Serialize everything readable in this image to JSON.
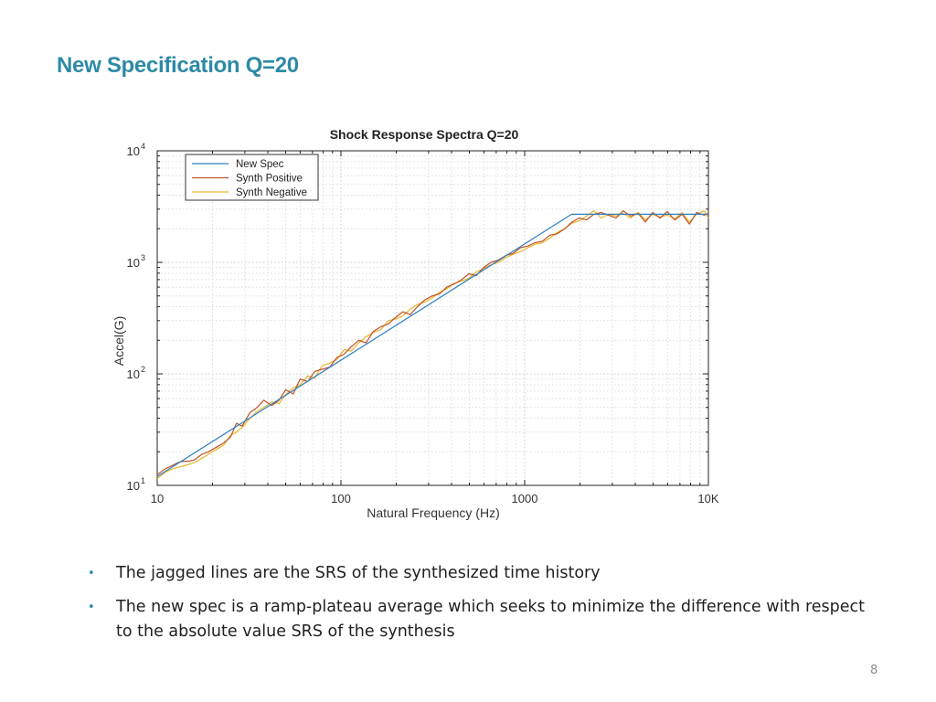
{
  "slide": {
    "title": "New Specification Q=20",
    "bullets": [
      "The jagged lines are the SRS of the synthesized time history",
      "The new spec is a ramp-plateau average which seeks to minimize the difference with respect to the absolute value SRS of the synthesis"
    ],
    "page_number": "8",
    "bullet_symbol": "•"
  },
  "colors": {
    "title": "#2e8aa6",
    "bullet": "#2e8aa6",
    "new_spec": "#2f7fc1",
    "synth_positive": "#c0502a",
    "synth_negative": "#e8b62b"
  },
  "chart_data": {
    "type": "line",
    "title": "Shock Response Spectra  Q=20",
    "xlabel": "Natural Frequency (Hz)",
    "ylabel": "Accel(G)",
    "xscale": "log",
    "yscale": "log",
    "xlim": [
      10,
      10000
    ],
    "ylim": [
      10,
      10000
    ],
    "x_ticks": [
      {
        "value": 10,
        "label": "10"
      },
      {
        "value": 100,
        "label": "100"
      },
      {
        "value": 1000,
        "label": "1000"
      },
      {
        "value": 10000,
        "label": "10K"
      }
    ],
    "y_ticks": [
      {
        "value": 10,
        "base": "10",
        "exp": "1"
      },
      {
        "value": 100,
        "base": "10",
        "exp": "2"
      },
      {
        "value": 1000,
        "base": "10",
        "exp": "3"
      },
      {
        "value": 10000,
        "base": "10",
        "exp": "4"
      }
    ],
    "grid": true,
    "legend_position": "top-left",
    "series": [
      {
        "name": "New Spec",
        "color": "#2f7fc1",
        "x": [
          10,
          1800,
          10000
        ],
        "y": [
          12,
          2700,
          2700
        ]
      },
      {
        "name": "Synth Positive",
        "color": "#c0502a",
        "x": [
          10,
          11,
          12,
          13,
          14,
          15,
          16,
          17.5,
          19,
          21,
          23,
          25,
          27,
          29,
          32,
          35,
          38,
          42,
          46,
          50,
          55,
          60,
          66,
          72,
          79,
          87,
          95,
          104,
          114,
          125,
          137,
          150,
          165,
          181,
          198,
          217,
          238,
          261,
          286,
          314,
          344,
          377,
          414,
          454,
          497,
          545,
          598,
          656,
          719,
          788,
          864,
          948,
          1040,
          1140,
          1250,
          1370,
          1500,
          1650,
          1810,
          1980,
          2170,
          2380,
          2610,
          2860,
          3140,
          3440,
          3770,
          4140,
          4540,
          4970,
          5450,
          5980,
          6560,
          7190,
          7880,
          8640,
          9480,
          10000
        ],
        "y": [
          12.5,
          14,
          15,
          16,
          16.5,
          16.5,
          17,
          19,
          20,
          22,
          24,
          27,
          36,
          34,
          45,
          50,
          58,
          52,
          58,
          72,
          66,
          90,
          85,
          105,
          110,
          115,
          140,
          150,
          175,
          200,
          190,
          240,
          265,
          280,
          320,
          360,
          340,
          400,
          460,
          500,
          520,
          600,
          640,
          700,
          790,
          760,
          900,
          1000,
          1050,
          1150,
          1200,
          1350,
          1400,
          1500,
          1550,
          1750,
          1800,
          2000,
          2300,
          2500,
          2400,
          2700,
          2800,
          2650,
          2500,
          2900,
          2600,
          2750,
          2300,
          2800,
          2500,
          2850,
          2400,
          2700,
          2200,
          2800,
          2650,
          2750
        ]
      },
      {
        "name": "Synth Negative",
        "color": "#e8b62b",
        "x": [
          10,
          11,
          12,
          13,
          14,
          15,
          16,
          17.5,
          19,
          21,
          23,
          25,
          27,
          29,
          32,
          35,
          38,
          42,
          46,
          50,
          55,
          60,
          66,
          72,
          79,
          87,
          95,
          104,
          114,
          125,
          137,
          150,
          165,
          181,
          198,
          217,
          238,
          261,
          286,
          314,
          344,
          377,
          414,
          454,
          497,
          545,
          598,
          656,
          719,
          788,
          864,
          948,
          1040,
          1140,
          1250,
          1370,
          1500,
          1650,
          1810,
          1980,
          2170,
          2380,
          2610,
          2860,
          3140,
          3440,
          3770,
          4140,
          4540,
          4970,
          5450,
          5980,
          6560,
          7190,
          7880,
          8640,
          9480,
          10000
        ],
        "y": [
          11.5,
          13,
          14,
          14.5,
          15,
          15.5,
          16,
          17.5,
          19,
          21,
          23,
          28,
          30,
          33,
          40,
          46,
          50,
          56,
          54,
          65,
          75,
          80,
          96,
          92,
          118,
          125,
          135,
          165,
          160,
          190,
          215,
          235,
          250,
          300,
          310,
          330,
          380,
          420,
          440,
          480,
          540,
          580,
          650,
          680,
          720,
          820,
          880,
          950,
          1000,
          1100,
          1180,
          1250,
          1350,
          1450,
          1500,
          1650,
          1850,
          2000,
          2250,
          2350,
          2600,
          2900,
          2500,
          2700,
          2600,
          2750,
          2500,
          2800,
          2400,
          2700,
          2550,
          2650,
          2450,
          2800,
          2300,
          2700,
          2900,
          2500
        ]
      }
    ]
  }
}
